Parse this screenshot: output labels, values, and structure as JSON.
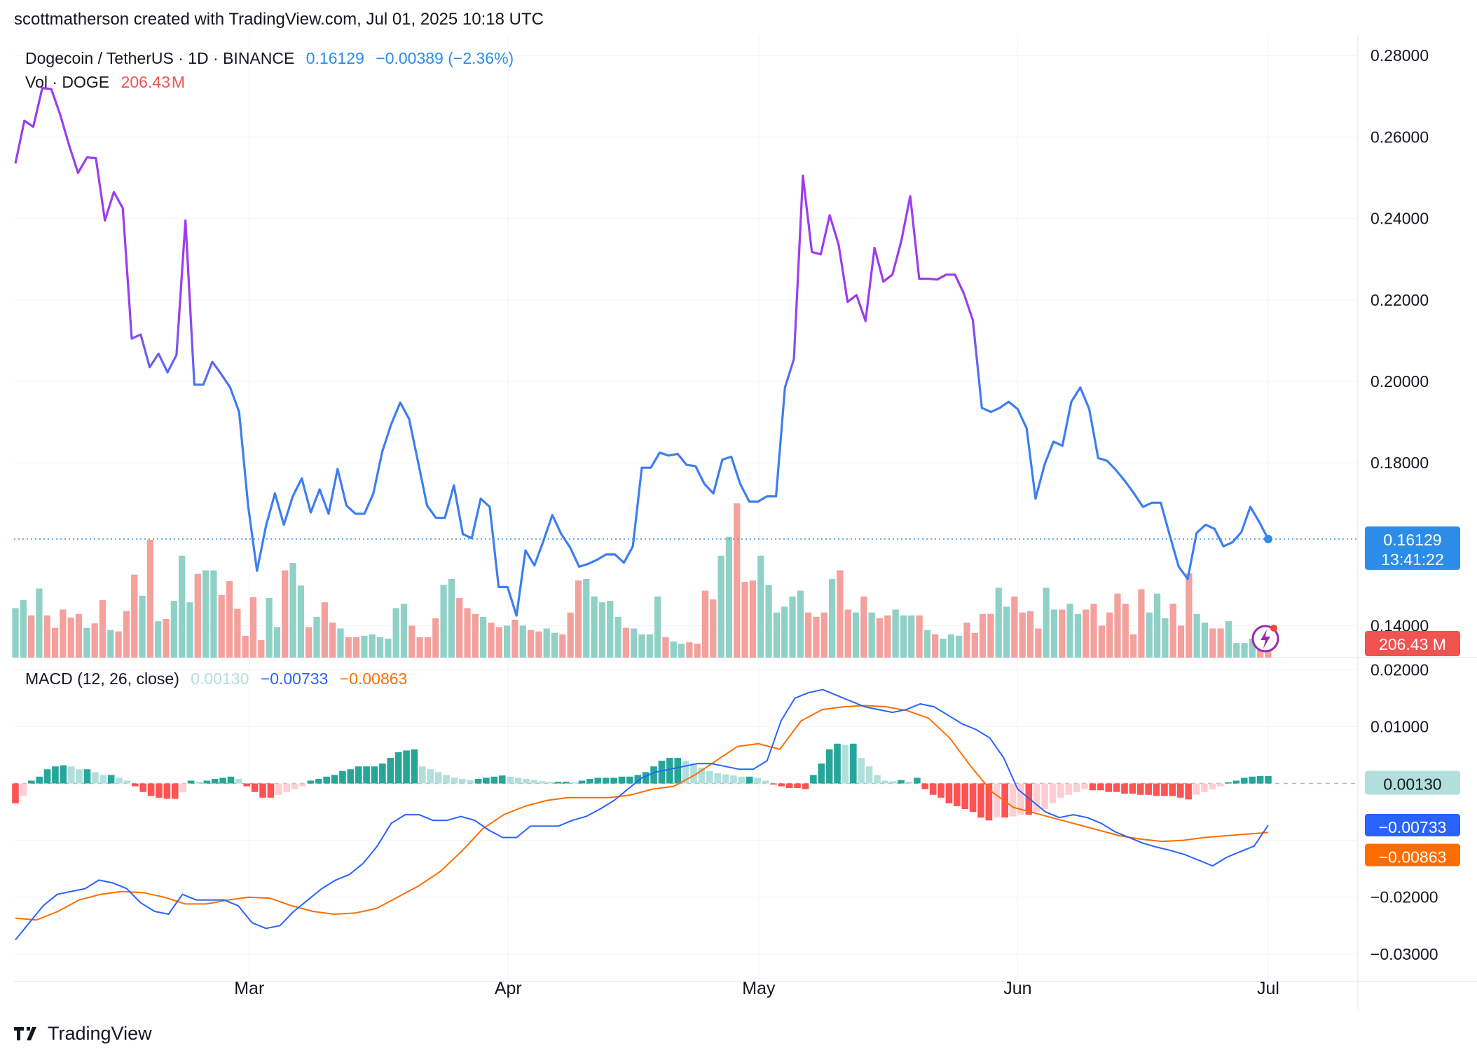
{
  "header": {
    "attribution": "scottmatherson created with TradingView.com, Jul 01, 2025 10:18 UTC"
  },
  "legend": {
    "symbol": "Dogecoin / TetherUS · 1D · BINANCE",
    "price": "0.16129",
    "change": "−0.00389 (−2.36%)",
    "vol_label": "Vol · DOGE",
    "vol_value": "206.43",
    "vol_unit": "M",
    "macd_label": "MACD (12, 26, close)",
    "macd_hist": "0.00130",
    "macd_line": "−0.00733",
    "macd_signal": "−0.00863"
  },
  "badges": {
    "price": "0.16129",
    "countdown": "13:41:22",
    "volume": "206.43 M",
    "hist": "0.00130",
    "macd": "−0.00733",
    "signal": "−0.00863"
  },
  "footer": {
    "brand": "TradingView"
  },
  "colors": {
    "price_high": "#9c3dee",
    "price_low": "#3d7ef0",
    "vol_up": "#8fd1c6",
    "vol_down": "#f4a09c",
    "macd_line": "#2962ff",
    "signal_line": "#ff6d00",
    "hist_pos_strong": "#26a69a",
    "hist_pos_weak": "#b2dfdb",
    "hist_neg_strong": "#ff5252",
    "hist_neg_weak": "#ffcdd2",
    "badge_price": "#2b8de8",
    "badge_volume": "#f05350"
  },
  "chart_data": [
    {
      "type": "line",
      "title": "Dogecoin / TetherUS · 1D · BINANCE",
      "x_start": "2025-02-01",
      "x_end": "2025-07-01",
      "x_ticks": [
        "Mar",
        "Apr",
        "May",
        "Jun",
        "Jul"
      ],
      "y_ticks": [
        "0.28000",
        "0.26000",
        "0.24000",
        "0.22000",
        "0.20000",
        "0.18000",
        "0.14000"
      ],
      "ylim": [
        0.1315,
        0.284
      ],
      "last_price": 0.16129,
      "grid": true,
      "series": [
        {
          "name": "Close",
          "values": [
            0.2535,
            0.264,
            0.2625,
            0.272,
            0.2718,
            0.2655,
            0.258,
            0.2512,
            0.255,
            0.2548,
            0.2395,
            0.2465,
            0.2425,
            0.2105,
            0.2115,
            0.2035,
            0.2068,
            0.2022,
            0.2065,
            0.2395,
            0.1992,
            0.1992,
            0.2048,
            0.2018,
            0.1985,
            0.1925,
            0.1695,
            0.1535,
            0.1645,
            0.1725,
            0.1648,
            0.1718,
            0.1762,
            0.1678,
            0.1735,
            0.1675,
            0.1785,
            0.1695,
            0.1675,
            0.1675,
            0.1725,
            0.1828,
            0.1895,
            0.1948,
            0.1908,
            0.1802,
            0.1695,
            0.1665,
            0.1665,
            0.1745,
            0.1625,
            0.1615,
            0.1712,
            0.1692,
            0.1495,
            0.1495,
            0.1425,
            0.1585,
            0.1548,
            0.1608,
            0.1672,
            0.1625,
            0.1592,
            0.1545,
            0.1552,
            0.1562,
            0.1575,
            0.1575,
            0.1555,
            0.1595,
            0.1788,
            0.1788,
            0.1825,
            0.1818,
            0.1822,
            0.1795,
            0.1792,
            0.1748,
            0.1725,
            0.1808,
            0.1815,
            0.1748,
            0.1705,
            0.1705,
            0.1718,
            0.1718,
            0.1985,
            0.2055,
            0.2505,
            0.2318,
            0.2312,
            0.2408,
            0.2335,
            0.2195,
            0.2212,
            0.2148,
            0.2328,
            0.2245,
            0.2262,
            0.2345,
            0.2455,
            0.2252,
            0.2252,
            0.225,
            0.2262,
            0.2262,
            0.2215,
            0.215,
            0.1935,
            0.1925,
            0.1935,
            0.195,
            0.1932,
            0.1885,
            0.1712,
            0.1795,
            0.1852,
            0.1842,
            0.195,
            0.1985,
            0.1932,
            0.1812,
            0.1805,
            0.1782,
            0.1755,
            0.1725,
            0.1692,
            0.1702,
            0.1702,
            0.1622,
            0.1545,
            0.1515,
            0.1628,
            0.1648,
            0.1638,
            0.1595,
            0.1605,
            0.163,
            0.1692,
            0.1655,
            0.16129
          ]
        }
      ]
    },
    {
      "type": "bar",
      "title": "Vol · DOGE",
      "unit": "M",
      "last_value": 206.43,
      "values": [
        340,
        395,
        290,
        475,
        290,
        205,
        330,
        275,
        300,
        205,
        235,
        395,
        190,
        180,
        320,
        570,
        425,
        810,
        250,
        265,
        390,
        700,
        380,
        575,
        600,
        600,
        430,
        525,
        335,
        150,
        415,
        120,
        410,
        210,
        600,
        650,
        495,
        210,
        280,
        380,
        240,
        200,
        140,
        140,
        150,
        160,
        140,
        130,
        340,
        370,
        220,
        140,
        140,
        270,
        500,
        540,
        410,
        340,
        300,
        280,
        240,
        210,
        220,
        260,
        220,
        190,
        180,
        200,
        170,
        160,
        310,
        530,
        540,
        420,
        380,
        390,
        280,
        205,
        200,
        160,
        160,
        420,
        140,
        110,
        95,
        105,
        95,
        460,
        400,
        700,
        830,
        1060,
        520,
        530,
        700,
        500,
        310,
        350,
        420,
        460,
        310,
        280,
        310,
        540,
        600,
        330,
        310,
        420,
        310,
        270,
        290,
        330,
        290,
        290,
        290,
        190,
        160,
        130,
        160,
        150,
        240,
        170,
        300,
        300,
        480,
        350,
        420,
        310,
        320,
        200,
        480,
        330,
        330,
        370,
        300,
        330,
        370,
        220,
        310,
        440,
        370,
        160,
        470,
        310,
        440,
        270,
        370,
        220,
        580,
        300,
        240,
        200,
        200,
        250,
        100,
        100,
        130,
        150,
        206.43
      ]
    },
    {
      "type": "line",
      "title": "MACD (12, 26, close)",
      "y_ticks": [
        "0.02000",
        "0.01000",
        "−0.02000",
        "−0.03000"
      ],
      "ylim": [
        -0.0336,
        0.0214
      ],
      "series": [
        {
          "name": "MACD",
          "values": [
            -0.0275,
            -0.0245,
            -0.0215,
            -0.0195,
            -0.019,
            -0.0185,
            -0.017,
            -0.0175,
            -0.0185,
            -0.021,
            -0.0225,
            -0.023,
            -0.0195,
            -0.0205,
            -0.0205,
            -0.0205,
            -0.0215,
            -0.0245,
            -0.0255,
            -0.025,
            -0.0225,
            -0.0205,
            -0.0185,
            -0.017,
            -0.016,
            -0.014,
            -0.011,
            -0.007,
            -0.0055,
            -0.0055,
            -0.0065,
            -0.0065,
            -0.0058,
            -0.0065,
            -0.0082,
            -0.0095,
            -0.0095,
            -0.0075,
            -0.0075,
            -0.0075,
            -0.0065,
            -0.0058,
            -0.0045,
            -0.003,
            -0.001,
            0.001,
            0.002,
            0.0025,
            0.003,
            0.0035,
            0.0035,
            0.003,
            0.0025,
            0.0025,
            0.004,
            0.011,
            0.015,
            0.016,
            0.0165,
            0.0155,
            0.0145,
            0.0135,
            0.013,
            0.0125,
            0.013,
            0.014,
            0.0135,
            0.012,
            0.0105,
            0.0095,
            0.008,
            0.0045,
            -0.001,
            -0.003,
            -0.005,
            -0.006,
            -0.0055,
            -0.006,
            -0.007,
            -0.0085,
            -0.0095,
            -0.0105,
            -0.0112,
            -0.0118,
            -0.0125,
            -0.0135,
            -0.0145,
            -0.013,
            -0.012,
            -0.011,
            -0.00733
          ]
        },
        {
          "name": "Signal",
          "values": [
            -0.0237,
            -0.024,
            -0.0225,
            -0.0205,
            -0.0195,
            -0.019,
            -0.0192,
            -0.02,
            -0.0212,
            -0.0212,
            -0.0205,
            -0.02,
            -0.0202,
            -0.0215,
            -0.0225,
            -0.023,
            -0.0228,
            -0.022,
            -0.02,
            -0.018,
            -0.0155,
            -0.012,
            -0.008,
            -0.0055,
            -0.004,
            -0.003,
            -0.0025,
            -0.0025,
            -0.0025,
            -0.002,
            -0.001,
            -0.0005,
            0.0015,
            0.004,
            0.0065,
            0.007,
            0.006,
            0.011,
            0.013,
            0.0135,
            0.0137,
            0.0135,
            0.0128,
            0.0115,
            0.008,
            0.003,
            -0.0015,
            -0.0042,
            -0.0052,
            -0.0062,
            -0.0072,
            -0.0082,
            -0.0092,
            -0.0098,
            -0.0102,
            -0.01,
            -0.0095,
            -0.0092,
            -0.0089,
            -0.00863
          ]
        }
      ],
      "histogram": [
        -0.0035,
        -0.0022,
        0.0005,
        0.0012,
        0.0025,
        0.003,
        0.0032,
        0.003,
        0.0025,
        0.0025,
        0.002,
        0.0015,
        0.0015,
        0.001,
        0.0005,
        -0.0005,
        -0.0015,
        -0.0022,
        -0.0025,
        -0.0027,
        -0.0027,
        -0.0015,
        0.0005,
        0.0003,
        0.0005,
        0.0008,
        0.001,
        0.0012,
        0.0008,
        -0.0005,
        -0.0015,
        -0.0025,
        -0.0025,
        -0.002,
        -0.0015,
        -0.001,
        -0.0005,
        0.0005,
        0.0008,
        0.0012,
        0.0015,
        0.0022,
        0.0025,
        0.003,
        0.003,
        0.003,
        0.0035,
        0.0045,
        0.0055,
        0.0058,
        0.006,
        0.003,
        0.0025,
        0.002,
        0.0015,
        0.001,
        0.0008,
        0.0006,
        0.0008,
        0.001,
        0.0012,
        0.0014,
        0.0012,
        0.001,
        0.0008,
        0.0006,
        0.0004,
        0.0003,
        0.0003,
        0.0003,
        0.0002,
        0.0005,
        0.0008,
        0.001,
        0.001,
        0.001,
        0.0012,
        0.0012,
        0.0015,
        0.002,
        0.003,
        0.004,
        0.0045,
        0.0045,
        0.004,
        0.0035,
        0.0028,
        0.0022,
        0.0018,
        0.0016,
        0.0014,
        0.0012,
        0.0012,
        0.001,
        0.0005,
        -0.0002,
        -0.0005,
        -0.0008,
        -0.0008,
        -0.001,
        0.0015,
        0.0035,
        0.006,
        0.007,
        0.0068,
        0.007,
        0.0045,
        0.003,
        0.0015,
        0.0005,
        0.0004,
        0.0006,
        0.0003,
        0.001,
        -0.001,
        -0.002,
        -0.0025,
        -0.0035,
        -0.004,
        -0.0045,
        -0.005,
        -0.006,
        -0.0065,
        -0.006,
        -0.006,
        -0.0058,
        -0.0055,
        -0.0055,
        -0.005,
        -0.0045,
        -0.0035,
        -0.0025,
        -0.002,
        -0.0015,
        -0.001,
        -0.0012,
        -0.0012,
        -0.0015,
        -0.0015,
        -0.0018,
        -0.0018,
        -0.002,
        -0.002,
        -0.0022,
        -0.0022,
        -0.0022,
        -0.0025,
        -0.0028,
        -0.002,
        -0.0015,
        -0.001,
        -0.0005,
        0.0002,
        0.0005,
        0.001,
        0.0012,
        0.0013,
        0.0013
      ]
    }
  ]
}
